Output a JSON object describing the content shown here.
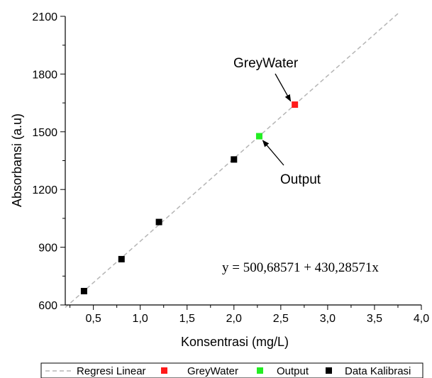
{
  "chart_data": {
    "type": "scatter",
    "xlabel": "Konsentrasi (mg/L)",
    "ylabel": "Absorbansi (a.u)",
    "xlim": [
      0.2,
      4.0
    ],
    "ylim": [
      600,
      2100
    ],
    "x_ticks": [
      0.5,
      1.0,
      1.5,
      2.0,
      2.5,
      3.0,
      3.5,
      4.0
    ],
    "x_tick_labels": [
      "0,5",
      "1,0",
      "1,5",
      "2,0",
      "2,5",
      "3,0",
      "3,5",
      "4,0"
    ],
    "y_ticks": [
      600,
      900,
      1200,
      1500,
      1800,
      2100
    ],
    "y_tick_labels": [
      "600",
      "900",
      "1200",
      "1500",
      "1800",
      "2100"
    ],
    "grid": false,
    "legend_position": "bottom",
    "equation": "y = 500,68571 + 430,28571x",
    "regression": {
      "intercept": 500.68571,
      "slope": 430.28571,
      "x_range": [
        0.2,
        3.75
      ]
    },
    "series": [
      {
        "name": "Regresi Linear",
        "kind": "dashed-line",
        "color": "#b5b5b5"
      },
      {
        "name": "GreyWater",
        "kind": "square",
        "color": "#ff1a1a",
        "points": [
          [
            2.65,
            1641
          ]
        ]
      },
      {
        "name": "Output",
        "kind": "square",
        "color": "#22ee22",
        "points": [
          [
            2.27,
            1477
          ]
        ]
      },
      {
        "name": "Data Kalibrasi",
        "kind": "square",
        "color": "#000000",
        "points": [
          [
            0.4,
            672
          ],
          [
            0.8,
            838
          ],
          [
            1.2,
            1031
          ],
          [
            2.0,
            1356
          ]
        ]
      }
    ],
    "annotations": [
      {
        "text": "GreyWater",
        "target": [
          2.65,
          1641
        ]
      },
      {
        "text": "Output",
        "target": [
          2.27,
          1477
        ]
      }
    ]
  }
}
